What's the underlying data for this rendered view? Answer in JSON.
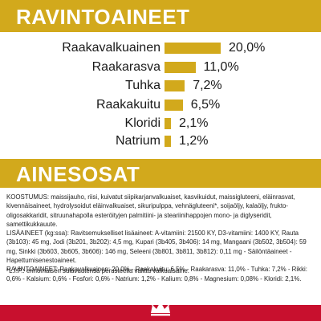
{
  "nutrients_section": {
    "title": "RAVINTOAINEET",
    "items": [
      {
        "name": "Raakavalkuainen",
        "value": "20,0%",
        "percent": 20.0
      },
      {
        "name": "Raakarasva",
        "value": "11,0%",
        "percent": 11.0
      },
      {
        "name": "Tuhka",
        "value": "7,2%",
        "percent": 7.2
      },
      {
        "name": "Raakakuitu",
        "value": "6,5%",
        "percent": 6.5
      },
      {
        "name": "Kloridi",
        "value": "2,1%",
        "percent": 2.1
      },
      {
        "name": "Natrium",
        "value": "1,2%",
        "percent": 1.2
      }
    ],
    "bar_color": "#d2a91c"
  },
  "ingredients_section": {
    "title": "AINESOSAT",
    "composition": "KOOSTUMUS: maissijauho, riisi, kuivatut siipikarjanvalkuaiset, kasvikuidut, maissigluteeni, eläinrasvat, kivennäisaineet, hydrolysoidut eläinvalkuaiset, sikuripulppa, vehnägluteeni*, soijaöljy, kalaöljy, frukto-oligosakkaridit, sitruunahapolla esteröityjen palmitiini- ja steariinihappojen mono- ja diglyseridit, samettikukkauute.",
    "additives": "LISÄAINEET (kg:ssa): Ravitsemukselliset lisäaineet: A-vitamiini: 21500 KY, D3-vitamiini: 1400 KY, Rauta (3b103): 45 mg, Jodi (3b201, 3b202): 4,5 mg, Kupari (3b405, 3b406): 14 mg, Mangaani (3b502, 3b504): 59 mg, Sinkki (3b603, 3b605, 3b606): 146 mg, Seleeni (3b801, 3b811, 3b812): 0,11 mg - Säilöntäaineet - Hapettumisenestoaineet.",
    "nutrients_text": "RAVINTOAINEET: Raakavalkuainen: 20,0% - Raakakuitu: 6,5% - Raakarasva: 11,0% - Tuhka: 7,2% - Rikki: 0,6% - Kalsium: 0,6% - Fosfori: 0,6% - Natrium: 1,2% - Kalium: 0,8% - Magnesium: 0,08% - Kloridi: 2,1%.",
    "footnote": "*L.I.P.: erinomaisen sulavuutensa perusteella valittu valkuaisaine."
  },
  "footer": {
    "band_color": "#c8102e",
    "logo_icon": "crown-logo-icon"
  }
}
